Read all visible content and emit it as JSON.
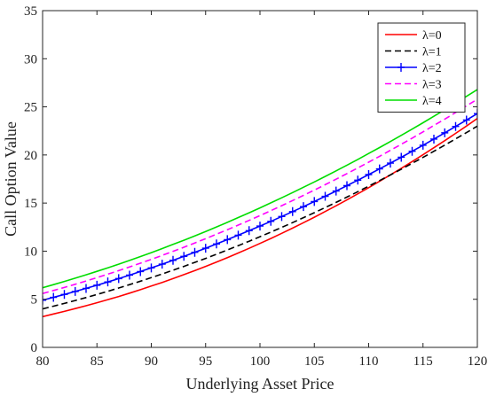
{
  "chart_data": {
    "type": "line",
    "title": "",
    "xlabel": "Underlying Asset Price",
    "ylabel": "Call Option Value",
    "xlim": [
      80,
      120
    ],
    "ylim": [
      0,
      35
    ],
    "x_ticks": [
      "80",
      "85",
      "90",
      "95",
      "100",
      "105",
      "110",
      "115",
      "120"
    ],
    "y_ticks": [
      "0",
      "5",
      "10",
      "15",
      "20",
      "25",
      "30",
      "35"
    ],
    "grid": false,
    "legend_position": "top-right",
    "x": [
      80,
      81,
      82,
      83,
      84,
      85,
      86,
      87,
      88,
      89,
      90,
      91,
      92,
      93,
      94,
      95,
      96,
      97,
      98,
      99,
      100,
      101,
      102,
      103,
      104,
      105,
      106,
      107,
      108,
      109,
      110,
      111,
      112,
      113,
      114,
      115,
      116,
      117,
      118,
      119,
      120
    ],
    "series": [
      {
        "name": "λ=0",
        "color": "#ff0000",
        "dash": "solid",
        "marker": "none",
        "values": [
          3.2,
          3.47,
          3.74,
          4.03,
          4.33,
          4.64,
          4.96,
          5.29,
          5.64,
          6.0,
          6.37,
          6.75,
          7.15,
          7.56,
          7.98,
          8.42,
          8.87,
          9.33,
          9.81,
          10.3,
          10.8,
          11.32,
          11.85,
          12.4,
          12.96,
          13.53,
          14.12,
          14.72,
          15.33,
          15.96,
          16.6,
          17.26,
          17.93,
          18.61,
          19.31,
          20.02,
          20.75,
          21.49,
          22.24,
          23.01,
          23.8
        ]
      },
      {
        "name": "λ=1",
        "color": "#000000",
        "dash": "dashed",
        "marker": "none",
        "values": [
          4.0,
          4.28,
          4.57,
          4.87,
          5.18,
          5.5,
          5.83,
          6.17,
          6.52,
          6.88,
          7.25,
          7.63,
          8.02,
          8.42,
          8.83,
          9.25,
          9.68,
          10.12,
          10.57,
          11.03,
          11.5,
          11.98,
          12.47,
          12.97,
          13.48,
          14.0,
          14.53,
          15.07,
          15.62,
          16.18,
          16.75,
          17.33,
          17.92,
          18.52,
          19.13,
          19.75,
          20.38,
          21.02,
          21.67,
          22.33,
          23.0
        ]
      },
      {
        "name": "λ=2",
        "color": "#0000ff",
        "dash": "solid",
        "marker": "plus",
        "values": [
          4.9,
          5.2,
          5.5,
          5.81,
          6.13,
          6.46,
          6.8,
          7.15,
          7.51,
          7.88,
          8.26,
          8.65,
          9.05,
          9.46,
          9.88,
          10.31,
          10.75,
          11.2,
          11.66,
          12.13,
          12.61,
          13.1,
          13.6,
          14.11,
          14.63,
          15.16,
          15.7,
          16.25,
          16.81,
          17.38,
          17.96,
          18.55,
          19.15,
          19.76,
          20.38,
          21.01,
          21.65,
          22.3,
          22.96,
          23.63,
          24.3
        ]
      },
      {
        "name": "λ=3",
        "color": "#ff00ff",
        "dash": "dashed",
        "marker": "none",
        "values": [
          5.6,
          5.91,
          6.23,
          6.56,
          6.9,
          7.25,
          7.61,
          7.98,
          8.36,
          8.75,
          9.15,
          9.56,
          9.98,
          10.41,
          10.85,
          11.3,
          11.76,
          12.23,
          12.71,
          13.2,
          13.7,
          14.21,
          14.73,
          15.26,
          15.8,
          16.35,
          16.91,
          17.48,
          18.06,
          18.65,
          19.25,
          19.86,
          20.48,
          21.11,
          21.75,
          22.4,
          23.06,
          23.73,
          24.41,
          25.1,
          25.8
        ]
      },
      {
        "name": "λ=4",
        "color": "#00dd00",
        "dash": "solid",
        "marker": "none",
        "values": [
          6.2,
          6.52,
          6.85,
          7.19,
          7.54,
          7.9,
          8.27,
          8.65,
          9.04,
          9.44,
          9.85,
          10.27,
          10.7,
          11.14,
          11.59,
          12.05,
          12.52,
          13.0,
          13.49,
          13.99,
          14.5,
          15.02,
          15.55,
          16.09,
          16.64,
          17.2,
          17.77,
          18.35,
          18.94,
          19.54,
          20.15,
          20.77,
          21.4,
          22.04,
          22.69,
          23.35,
          24.02,
          24.7,
          25.39,
          26.09,
          26.8
        ]
      }
    ]
  }
}
